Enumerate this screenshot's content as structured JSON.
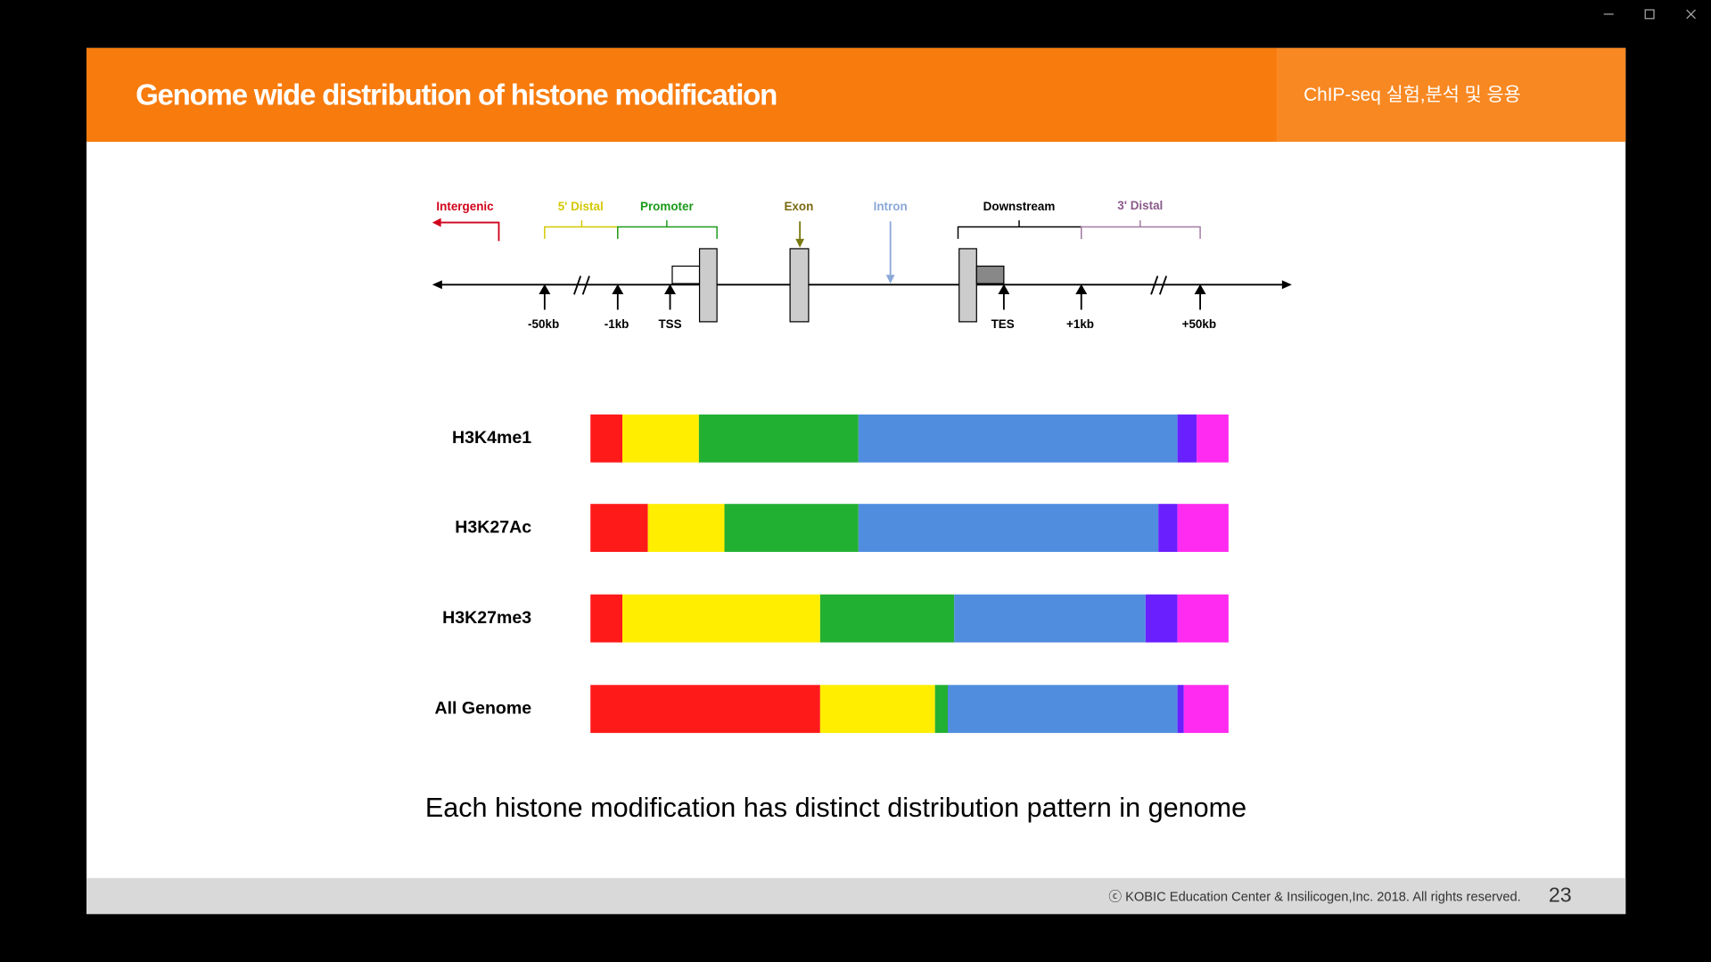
{
  "header": {
    "title": "Genome wide distribution of histone modification",
    "subtitle": "ChIP-seq 실험,분석 및 응용"
  },
  "diagram": {
    "regions": [
      "Intergenic",
      "5' Distal",
      "Promoter",
      "Exon",
      "Intron",
      "Downstream",
      "3' Distal"
    ],
    "positions": [
      "-50kb",
      "-1kb",
      "TSS",
      "TES",
      "+1kb",
      "+50kb"
    ]
  },
  "chart_data": {
    "type": "stacked-bar-horizontal",
    "categories": [
      "H3K4me1",
      "H3K27Ac",
      "H3K27me3",
      "All Genome"
    ],
    "xlim": [
      0,
      100
    ],
    "series": [
      {
        "color": "#ff1a1a",
        "values": [
          5,
          9,
          5,
          36
        ]
      },
      {
        "color": "#ffee00",
        "values": [
          12,
          12,
          31,
          18
        ]
      },
      {
        "color": "#22b033",
        "values": [
          25,
          21,
          21,
          2
        ]
      },
      {
        "color": "#508ddf",
        "values": [
          50,
          47,
          30,
          36
        ]
      },
      {
        "color": "#6a1fff",
        "values": [
          3,
          3,
          5,
          1
        ]
      },
      {
        "color": "#ff2bf0",
        "values": [
          5,
          8,
          8,
          7
        ]
      }
    ]
  },
  "caption": "Each histone modification has distinct distribution pattern in genome",
  "footer": {
    "copyright": "ⓒ KOBIC Education Center & Insilicogen,Inc. 2018. All rights reserved.",
    "page": "23"
  }
}
